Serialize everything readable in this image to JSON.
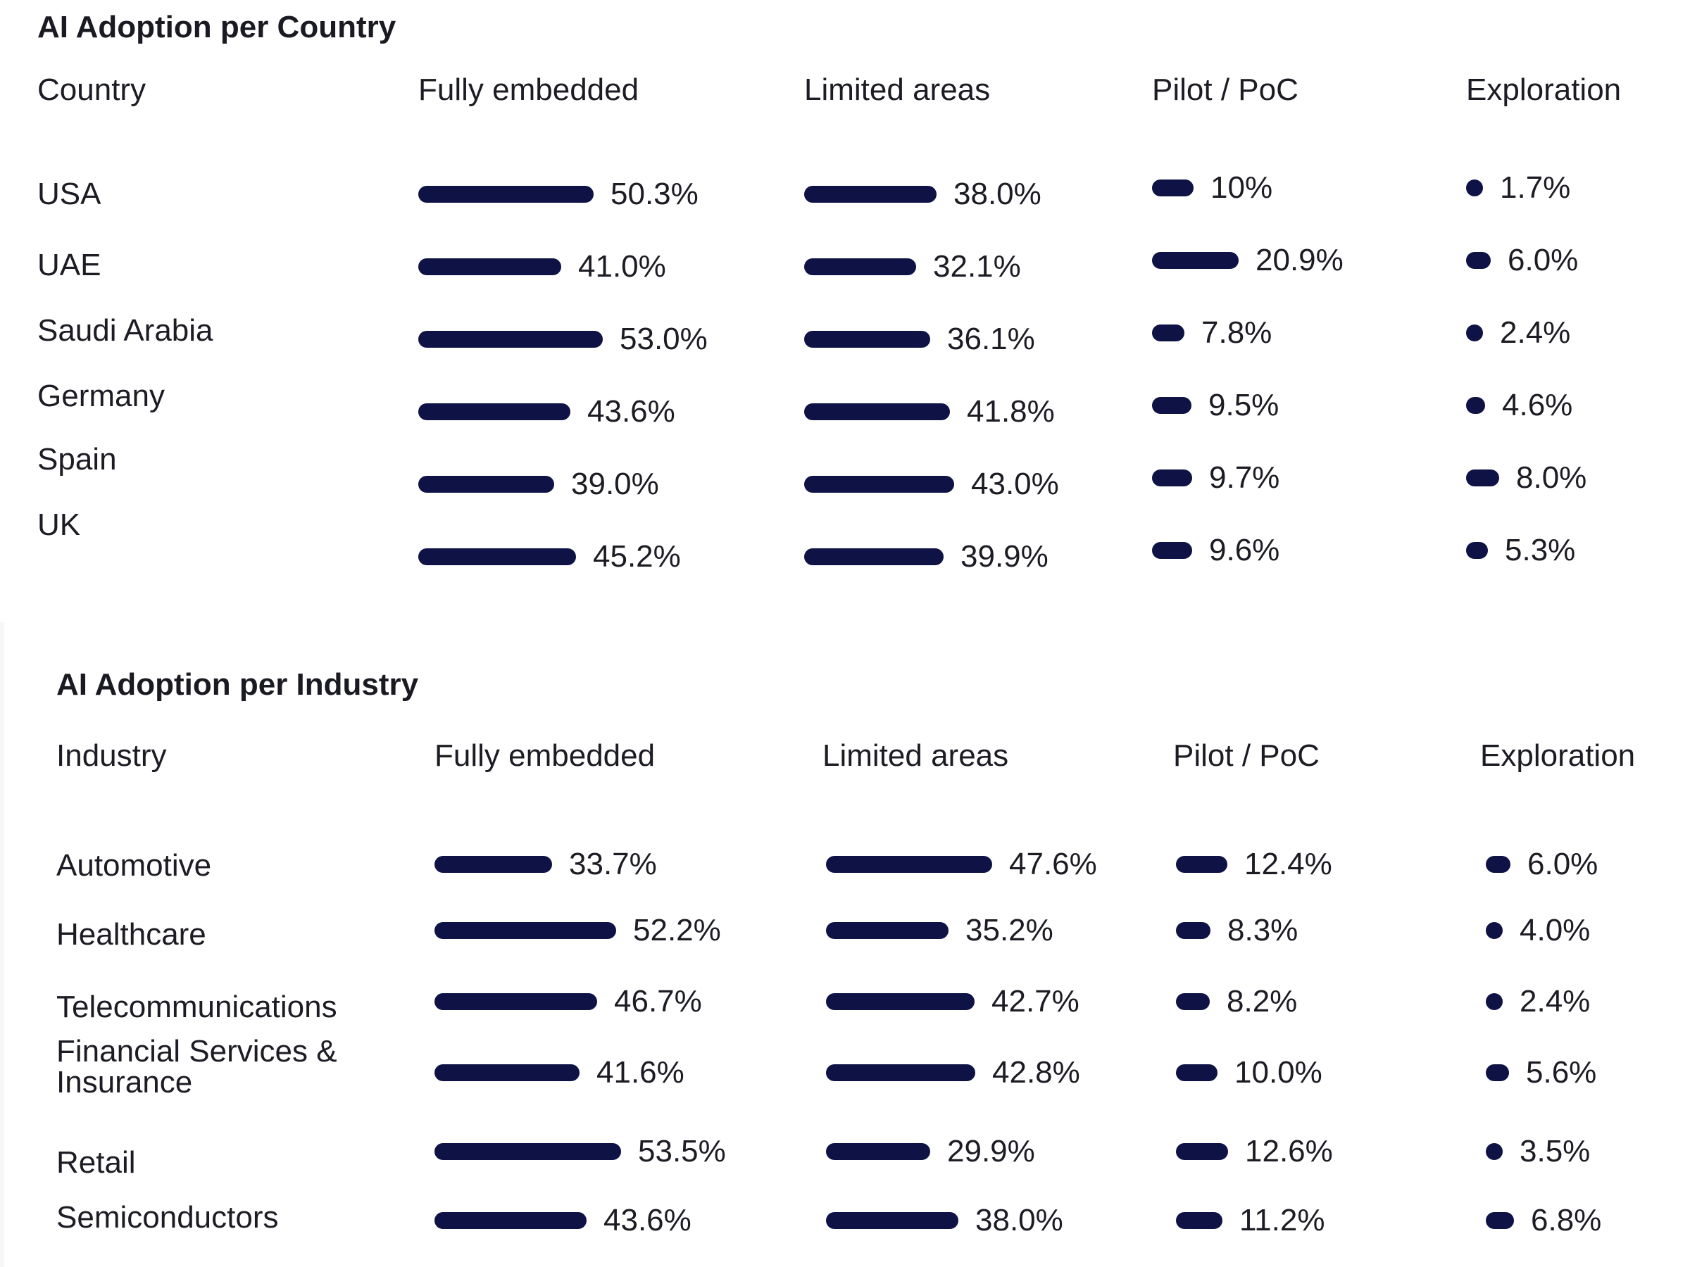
{
  "colors": {
    "bar": "#0e1245",
    "text": "#1c1c24",
    "background": "#ffffff"
  },
  "chart_data": [
    {
      "type": "bar",
      "title": "AI Adoption per Country",
      "row_header": "Country",
      "columns": [
        "Fully embedded",
        "Limited areas",
        "Pilot / PoC",
        "Exploration"
      ],
      "categories": [
        "USA",
        "UAE",
        "Saudi Arabia",
        "Germany",
        "Spain",
        "UK"
      ],
      "series": [
        {
          "name": "Fully embedded",
          "values": [
            50.3,
            41.0,
            53.0,
            43.6,
            39.0,
            45.2
          ],
          "labels": [
            "50.3%",
            "41.0%",
            "53.0%",
            "43.6%",
            "39.0%",
            "45.2%"
          ]
        },
        {
          "name": "Limited areas",
          "values": [
            38.0,
            32.1,
            36.1,
            41.8,
            43.0,
            39.9
          ],
          "labels": [
            "38.0%",
            "32.1%",
            "36.1%",
            "41.8%",
            "43.0%",
            "39.9%"
          ]
        },
        {
          "name": "Pilot / PoC",
          "values": [
            10,
            20.9,
            7.8,
            9.5,
            9.7,
            9.6
          ],
          "labels": [
            "10%",
            "20.9%",
            "7.8%",
            "9.5%",
            "9.7%",
            "9.6%"
          ]
        },
        {
          "name": "Exploration",
          "values": [
            1.7,
            6.0,
            2.4,
            4.6,
            8.0,
            5.3
          ],
          "labels": [
            "1.7%",
            "6.0%",
            "2.4%",
            "4.6%",
            "8.0%",
            "5.3%"
          ]
        }
      ]
    },
    {
      "type": "bar",
      "title": "AI Adoption per Industry",
      "row_header": "Industry",
      "columns": [
        "Fully embedded",
        "Limited areas",
        "Pilot / PoC",
        "Exploration"
      ],
      "categories": [
        "Automotive",
        "Healthcare",
        "Telecommunications",
        "Financial Services & Insurance",
        "Retail",
        "Semiconductors"
      ],
      "series": [
        {
          "name": "Fully embedded",
          "values": [
            33.7,
            52.2,
            46.7,
            41.6,
            53.5,
            43.6
          ],
          "labels": [
            "33.7%",
            "52.2%",
            "46.7%",
            "41.6%",
            "53.5%",
            "43.6%"
          ]
        },
        {
          "name": "Limited areas",
          "values": [
            47.6,
            35.2,
            42.7,
            42.8,
            29.9,
            38.0
          ],
          "labels": [
            "47.6%",
            "35.2%",
            "42.7%",
            "42.8%",
            "29.9%",
            "38.0%"
          ]
        },
        {
          "name": "Pilot / PoC",
          "values": [
            12.4,
            8.3,
            8.2,
            10.0,
            12.6,
            11.2
          ],
          "labels": [
            "12.4%",
            "8.3%",
            "8.2%",
            "10.0%",
            "12.6%",
            "11.2%"
          ]
        },
        {
          "name": "Exploration",
          "values": [
            6.0,
            4.0,
            2.4,
            5.6,
            3.5,
            6.8
          ],
          "labels": [
            "6.0%",
            "4.0%",
            "2.4%",
            "5.6%",
            "3.5%",
            "6.8%"
          ]
        }
      ]
    }
  ]
}
